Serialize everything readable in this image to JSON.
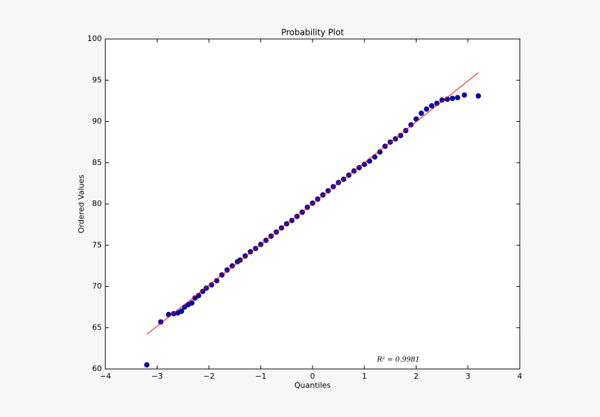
{
  "chart_data": {
    "type": "scatter",
    "title": "Probability Plot",
    "x_label": "Quantiles",
    "y_label": "Ordered Values",
    "annotation": "R² = 0.9981",
    "xlim": [
      -4,
      4
    ],
    "ylim": [
      60,
      100
    ],
    "xticks": [
      {
        "value": -4,
        "label": "−4"
      },
      {
        "value": -3,
        "label": "−3"
      },
      {
        "value": -2,
        "label": "−2"
      },
      {
        "value": -1,
        "label": "−1"
      },
      0,
      1,
      2,
      3,
      4
    ],
    "yticks": [
      60,
      65,
      70,
      75,
      80,
      85,
      90,
      95,
      100
    ],
    "points": {
      "color": "#0000cc",
      "x": [
        -3.2,
        -2.93,
        -2.78,
        -2.68,
        -2.6,
        -2.53,
        -2.47,
        -2.4,
        -2.33,
        -2.27,
        -2.2,
        -2.12,
        -2.05,
        -1.95,
        -1.85,
        -1.75,
        -1.65,
        -1.55,
        -1.45,
        -1.4,
        -1.3,
        -1.2,
        -1.1,
        -1.0,
        -0.9,
        -0.8,
        -0.7,
        -0.6,
        -0.5,
        -0.4,
        -0.3,
        -0.2,
        -0.1,
        0,
        0.1,
        0.2,
        0.3,
        0.4,
        0.5,
        0.6,
        0.7,
        0.8,
        0.9,
        1.0,
        1.1,
        1.2,
        1.3,
        1.4,
        1.5,
        1.6,
        1.7,
        1.8,
        1.9,
        2.0,
        2.1,
        2.2,
        2.3,
        2.4,
        2.5,
        2.6,
        2.7,
        2.8,
        2.93,
        3.2
      ],
      "y": [
        60.5,
        65.7,
        66.6,
        66.7,
        66.8,
        67.0,
        67.5,
        67.8,
        68.0,
        68.6,
        68.9,
        69.4,
        69.8,
        70.2,
        70.7,
        71.4,
        72.0,
        72.5,
        73.0,
        73.2,
        73.7,
        74.2,
        74.6,
        75.1,
        75.6,
        76.1,
        76.6,
        77.1,
        77.6,
        78.0,
        78.5,
        79.0,
        79.6,
        80.1,
        80.6,
        81.1,
        81.6,
        82.1,
        82.6,
        83.0,
        83.5,
        84.0,
        84.4,
        84.8,
        85.2,
        85.7,
        86.3,
        87.0,
        87.5,
        87.9,
        88.3,
        88.9,
        89.6,
        90.3,
        91.0,
        91.5,
        91.9,
        92.2,
        92.6,
        92.7,
        92.8,
        92.9,
        93.2,
        93.1
      ]
    },
    "fit_line": {
      "color": "#ff0000",
      "x": [
        -3.2,
        3.2
      ],
      "y": [
        64.2,
        95.9
      ]
    }
  }
}
